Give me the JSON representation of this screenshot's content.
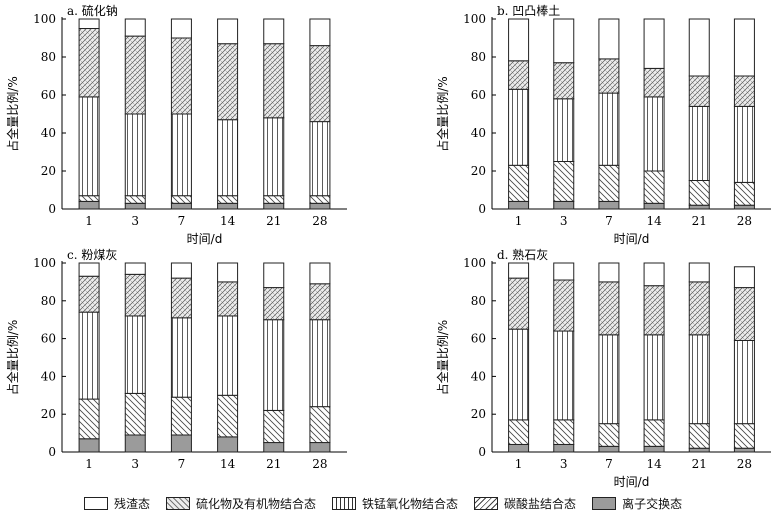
{
  "colors": {
    "stroke": "#222222",
    "ionic_fill": "#9b9b9b",
    "background": "#ffffff"
  },
  "chart_data": [
    {
      "type": "bar",
      "stacked": true,
      "title": "a. 硫化钠",
      "xlabel": "时间/d",
      "ylabel": "占全量比例/%",
      "ylim": [
        0,
        100
      ],
      "yticks": [
        0,
        20,
        40,
        60,
        80,
        100
      ],
      "categories": [
        "1",
        "3",
        "7",
        "14",
        "21",
        "28"
      ],
      "series": [
        {
          "name": "离子交换态",
          "values": [
            4,
            3,
            3,
            3,
            3,
            3
          ]
        },
        {
          "name": "碳酸盐结合态",
          "values": [
            3,
            4,
            4,
            4,
            4,
            4
          ]
        },
        {
          "name": "铁锰氧化物结合态",
          "values": [
            52,
            43,
            43,
            40,
            41,
            39
          ]
        },
        {
          "name": "硫化物及有机物结合态",
          "values": [
            36,
            41,
            40,
            40,
            39,
            40
          ]
        },
        {
          "name": "残渣态",
          "values": [
            5,
            9,
            10,
            13,
            13,
            14
          ]
        }
      ]
    },
    {
      "type": "bar",
      "stacked": true,
      "title": "b. 凹凸棒土",
      "xlabel": "时间/d",
      "ylabel": "占全量比例/%",
      "ylim": [
        0,
        100
      ],
      "yticks": [
        0,
        20,
        40,
        60,
        80,
        100
      ],
      "categories": [
        "1",
        "3",
        "7",
        "14",
        "21",
        "28"
      ],
      "series": [
        {
          "name": "离子交换态",
          "values": [
            4,
            4,
            4,
            3,
            2,
            2
          ]
        },
        {
          "name": "碳酸盐结合态",
          "values": [
            19,
            21,
            19,
            17,
            13,
            12
          ]
        },
        {
          "name": "铁锰氧化物结合态",
          "values": [
            40,
            33,
            38,
            39,
            39,
            40
          ]
        },
        {
          "name": "硫化物及有机物结合态",
          "values": [
            15,
            19,
            18,
            15,
            16,
            16
          ]
        },
        {
          "name": "残渣态",
          "values": [
            22,
            23,
            21,
            26,
            30,
            30
          ]
        }
      ]
    },
    {
      "type": "bar",
      "stacked": true,
      "title": "c. 粉煤灰",
      "xlabel": "",
      "ylabel": "占全量比例/%",
      "ylim": [
        0,
        100
      ],
      "yticks": [
        0,
        20,
        40,
        60,
        80,
        100
      ],
      "categories": [
        "1",
        "3",
        "7",
        "14",
        "21",
        "28"
      ],
      "series": [
        {
          "name": "离子交换态",
          "values": [
            7,
            9,
            9,
            8,
            5,
            5
          ]
        },
        {
          "name": "碳酸盐结合态",
          "values": [
            21,
            22,
            20,
            22,
            17,
            19
          ]
        },
        {
          "name": "铁锰氧化物结合态",
          "values": [
            46,
            41,
            42,
            42,
            48,
            46
          ]
        },
        {
          "name": "硫化物及有机物结合态",
          "values": [
            19,
            22,
            21,
            18,
            17,
            19
          ]
        },
        {
          "name": "残渣态",
          "values": [
            7,
            6,
            8,
            10,
            13,
            11
          ]
        }
      ]
    },
    {
      "type": "bar",
      "stacked": true,
      "title": "d. 熟石灰",
      "xlabel": "时间/d",
      "ylabel": "占全量比例/%",
      "ylim": [
        0,
        100
      ],
      "yticks": [
        0,
        20,
        40,
        60,
        80,
        100
      ],
      "categories": [
        "1",
        "3",
        "7",
        "14",
        "21",
        "28"
      ],
      "series": [
        {
          "name": "离子交换态",
          "values": [
            4,
            4,
            3,
            3,
            2,
            2
          ]
        },
        {
          "name": "碳酸盐结合态",
          "values": [
            13,
            13,
            12,
            14,
            13,
            13
          ]
        },
        {
          "name": "铁锰氧化物结合态",
          "values": [
            48,
            47,
            47,
            45,
            47,
            44
          ]
        },
        {
          "name": "硫化物及有机物结合态",
          "values": [
            27,
            27,
            28,
            26,
            28,
            28
          ]
        },
        {
          "name": "残渣态",
          "values": [
            8,
            9,
            10,
            12,
            10,
            11
          ]
        }
      ]
    }
  ],
  "legend": [
    {
      "label": "残渣态",
      "pattern": "blank"
    },
    {
      "label": "硫化物及有机物结合态",
      "pattern": "cross"
    },
    {
      "label": "铁锰氧化物结合态",
      "pattern": "vertical"
    },
    {
      "label": "碳酸盐结合态",
      "pattern": "diag"
    },
    {
      "label": "离子交换态",
      "pattern": "solid"
    }
  ]
}
